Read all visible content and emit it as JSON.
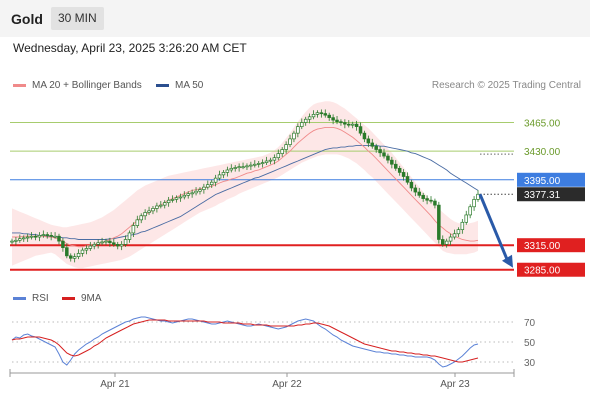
{
  "header": {
    "symbol": "Gold",
    "timeframe": "30 MIN",
    "datetime": "Wednesday, April 23, 2025 3:26:20 AM CET"
  },
  "legend": {
    "ma20": "MA 20 + Bollinger Bands",
    "ma50": "MA 50",
    "copyright": "Research © 2025 Trading Central"
  },
  "rsi_legend": {
    "rsi": "RSI",
    "ma": "9MA"
  },
  "colors": {
    "candle": "#2a7a2a",
    "bollinger_fill": "#fde4e4",
    "ma20": "#f08a8a",
    "ma50": "#4a6ca3",
    "resistance": "#a7cc6e",
    "pivot": "#3d7de0",
    "support": "#e02020",
    "arrow": "#2a5aa8",
    "rsi": "#5b82d6",
    "rsi_ma": "#d62020"
  },
  "chart_data": [
    {
      "type": "candlestick",
      "x_tick_labels": [
        "Apr 21",
        "Apr 22",
        "Apr 23"
      ],
      "ylim": [
        3270,
        3495
      ],
      "levels": [
        {
          "label": "3465.00",
          "value": 3465,
          "kind": "resistance"
        },
        {
          "label": "3430.00",
          "value": 3430,
          "kind": "resistance"
        },
        {
          "label": "3395.00",
          "value": 3395,
          "kind": "pivot"
        },
        {
          "label": "3315.00",
          "value": 3315,
          "kind": "support"
        },
        {
          "label": "3285.00",
          "value": 3285,
          "kind": "support"
        }
      ],
      "last_price": {
        "label": "3377.31",
        "value": 3377.31
      },
      "close": [
        3320,
        3321,
        3323,
        3324,
        3325,
        3326,
        3325,
        3327,
        3328,
        3327,
        3326,
        3326,
        3320,
        3312,
        3302,
        3299,
        3301,
        3305,
        3309,
        3311,
        3314,
        3316,
        3318,
        3319,
        3320,
        3318,
        3316,
        3314,
        3316,
        3322,
        3330,
        3339,
        3346,
        3351,
        3355,
        3357,
        3360,
        3363,
        3364,
        3367,
        3370,
        3371,
        3373,
        3374,
        3376,
        3378,
        3379,
        3381,
        3383,
        3386,
        3389,
        3392,
        3397,
        3401,
        3404,
        3407,
        3409,
        3410,
        3411,
        3411,
        3412,
        3413,
        3414,
        3415,
        3416,
        3418,
        3419,
        3422,
        3427,
        3432,
        3438,
        3445,
        3452,
        3460,
        3465,
        3469,
        3472,
        3475,
        3477,
        3476,
        3474,
        3471,
        3468,
        3466,
        3465,
        3463,
        3462,
        3463,
        3460,
        3452,
        3445,
        3440,
        3436,
        3432,
        3428,
        3424,
        3419,
        3414,
        3409,
        3404,
        3399,
        3392,
        3385,
        3380,
        3376,
        3372,
        3370,
        3369,
        3364,
        3322,
        3316,
        3320,
        3325,
        3329,
        3334,
        3343,
        3352,
        3362,
        3371,
        3377.31
      ],
      "ma20": [
        3325,
        3325,
        3325,
        3326,
        3326,
        3326,
        3326,
        3326,
        3326,
        3325,
        3325,
        3324,
        3322,
        3320,
        3317,
        3315,
        3314,
        3313,
        3313,
        3314,
        3315,
        3316,
        3317,
        3318,
        3320,
        3322,
        3324,
        3326,
        3329,
        3333,
        3337,
        3341,
        3345,
        3349,
        3352,
        3355,
        3358,
        3361,
        3364,
        3367,
        3370,
        3372,
        3374,
        3376,
        3378,
        3380,
        3382,
        3383,
        3384,
        3385,
        3386,
        3387,
        3389,
        3391,
        3393,
        3394,
        3396,
        3397,
        3399,
        3401,
        3403,
        3404,
        3406,
        3407,
        3409,
        3411,
        3413,
        3415,
        3418,
        3422,
        3426,
        3430,
        3435,
        3440,
        3444,
        3448,
        3452,
        3455,
        3457,
        3458,
        3459,
        3459,
        3459,
        3458,
        3456,
        3453,
        3450,
        3447,
        3443,
        3439,
        3435,
        3430,
        3426,
        3421,
        3416,
        3411,
        3406,
        3401,
        3396,
        3391,
        3386,
        3381,
        3376,
        3371,
        3366,
        3361,
        3356,
        3351,
        3345,
        3340,
        3336,
        3332,
        3329,
        3326,
        3324,
        3322,
        3321,
        3320,
        3320,
        3321
      ],
      "ma50": [
        3330,
        3330,
        3330,
        3329,
        3329,
        3328,
        3328,
        3327,
        3327,
        3326,
        3326,
        3325,
        3325,
        3324,
        3324,
        3323,
        3323,
        3322,
        3322,
        3322,
        3322,
        3322,
        3322,
        3322,
        3322,
        3323,
        3323,
        3324,
        3325,
        3326,
        3327,
        3328,
        3329,
        3331,
        3332,
        3334,
        3336,
        3338,
        3340,
        3342,
        3344,
        3346,
        3348,
        3350,
        3353,
        3356,
        3359,
        3362,
        3365,
        3368,
        3371,
        3374,
        3377,
        3379,
        3381,
        3383,
        3385,
        3387,
        3389,
        3391,
        3393,
        3395,
        3397,
        3398,
        3400,
        3402,
        3404,
        3406,
        3408,
        3410,
        3412,
        3414,
        3416,
        3418,
        3420,
        3422,
        3424,
        3426,
        3428,
        3430,
        3432,
        3433,
        3434,
        3434,
        3435,
        3435,
        3436,
        3436,
        3437,
        3437,
        3437,
        3437,
        3437,
        3437,
        3436,
        3436,
        3435,
        3434,
        3433,
        3432,
        3431,
        3430,
        3428,
        3427,
        3425,
        3423,
        3421,
        3419,
        3416,
        3413,
        3410,
        3407,
        3403,
        3400,
        3397,
        3394,
        3391,
        3388,
        3385,
        3382
      ],
      "bb_upper": [
        3360,
        3358,
        3356,
        3354,
        3352,
        3350,
        3348,
        3346,
        3344,
        3342,
        3340,
        3339,
        3338,
        3337,
        3337,
        3338,
        3339,
        3340,
        3341,
        3342,
        3343,
        3345,
        3347,
        3349,
        3352,
        3355,
        3358,
        3362,
        3366,
        3370,
        3374,
        3378,
        3382,
        3385,
        3388,
        3390,
        3392,
        3394,
        3396,
        3398,
        3400,
        3401,
        3402,
        3403,
        3404,
        3405,
        3406,
        3407,
        3408,
        3409,
        3410,
        3411,
        3412,
        3413,
        3414,
        3415,
        3416,
        3417,
        3418,
        3419,
        3420,
        3421,
        3422,
        3423,
        3424,
        3426,
        3428,
        3431,
        3435,
        3440,
        3446,
        3452,
        3459,
        3466,
        3472,
        3478,
        3483,
        3487,
        3489,
        3490,
        3491,
        3491,
        3490,
        3488,
        3485,
        3482,
        3478,
        3474,
        3470,
        3466,
        3462,
        3458,
        3453,
        3448,
        3443,
        3438,
        3433,
        3428,
        3422,
        3416,
        3410,
        3404,
        3398,
        3392,
        3386,
        3380,
        3375,
        3370,
        3365,
        3360,
        3355,
        3351,
        3347,
        3344,
        3342,
        3341,
        3341,
        3342,
        3343,
        3345
      ],
      "bb_lower": [
        3290,
        3292,
        3294,
        3296,
        3298,
        3300,
        3302,
        3303,
        3304,
        3305,
        3306,
        3304,
        3300,
        3296,
        3292,
        3290,
        3288,
        3287,
        3287,
        3288,
        3289,
        3290,
        3291,
        3292,
        3293,
        3294,
        3295,
        3296,
        3297,
        3299,
        3301,
        3304,
        3307,
        3310,
        3313,
        3316,
        3319,
        3322,
        3325,
        3328,
        3331,
        3334,
        3337,
        3340,
        3343,
        3346,
        3349,
        3352,
        3355,
        3357,
        3359,
        3361,
        3363,
        3366,
        3368,
        3371,
        3373,
        3375,
        3378,
        3380,
        3382,
        3384,
        3386,
        3388,
        3390,
        3392,
        3394,
        3396,
        3398,
        3401,
        3404,
        3407,
        3410,
        3413,
        3416,
        3418,
        3420,
        3422,
        3424,
        3425,
        3426,
        3426,
        3426,
        3426,
        3425,
        3423,
        3421,
        3418,
        3415,
        3411,
        3407,
        3402,
        3398,
        3393,
        3388,
        3383,
        3378,
        3373,
        3368,
        3363,
        3358,
        3353,
        3348,
        3343,
        3338,
        3333,
        3328,
        3323,
        3318,
        3313,
        3308,
        3306,
        3305,
        3304,
        3304,
        3304,
        3304,
        3305,
        3306,
        3308
      ]
    },
    {
      "type": "line",
      "name": "RSI",
      "x_tick_labels": [
        "Apr 21",
        "Apr 22",
        "Apr 23"
      ],
      "y_tick_labels": [
        "70",
        "50",
        "30"
      ],
      "yticks": [
        70,
        50,
        30
      ],
      "ylim": [
        20,
        80
      ],
      "series": [
        {
          "values": [
            52,
            55,
            54,
            57,
            58,
            56,
            55,
            53,
            51,
            49,
            47,
            45,
            38,
            30,
            27,
            32,
            38,
            42,
            45,
            48,
            50,
            53,
            55,
            58,
            60,
            62,
            64,
            66,
            68,
            70,
            71,
            73,
            74,
            75,
            75,
            74,
            73,
            72,
            71,
            71,
            70,
            69,
            70,
            71,
            72,
            73,
            73,
            72,
            71,
            70,
            69,
            68,
            68,
            69,
            70,
            71,
            70,
            69,
            68,
            67,
            66,
            66,
            67,
            68,
            67,
            66,
            65,
            64,
            63,
            64,
            65,
            67,
            69,
            71,
            72,
            73,
            72,
            71,
            68,
            65,
            63,
            60,
            57,
            55,
            52,
            50,
            48,
            46,
            45,
            44,
            43,
            42,
            41,
            40,
            40,
            39,
            39,
            38,
            38,
            37,
            37,
            36,
            36,
            35,
            35,
            35,
            35,
            34,
            32,
            28,
            25,
            26,
            28,
            30,
            33,
            36,
            40,
            44,
            47,
            48
          ]
        },
        {
          "values": [
            52,
            53,
            53,
            54,
            55,
            55,
            55,
            55,
            54,
            53,
            52,
            50,
            47,
            43,
            39,
            37,
            36,
            37,
            39,
            41,
            43,
            46,
            48,
            51,
            54,
            56,
            58,
            60,
            62,
            64,
            66,
            68,
            69,
            70,
            71,
            72,
            72,
            72,
            72,
            72,
            71,
            71,
            71,
            71,
            71,
            71,
            71,
            71,
            71,
            71,
            70,
            70,
            70,
            70,
            69,
            69,
            69,
            69,
            69,
            68,
            68,
            68,
            67,
            67,
            67,
            67,
            66,
            66,
            66,
            66,
            66,
            66,
            66,
            67,
            67,
            68,
            68,
            69,
            69,
            68,
            67,
            66,
            64,
            62,
            60,
            58,
            56,
            54,
            52,
            50,
            48,
            47,
            46,
            45,
            44,
            43,
            42,
            41,
            41,
            40,
            40,
            39,
            39,
            38,
            38,
            37,
            37,
            36,
            36,
            35,
            34,
            33,
            32,
            31,
            30,
            30,
            31,
            32,
            33,
            34
          ]
        }
      ]
    }
  ]
}
